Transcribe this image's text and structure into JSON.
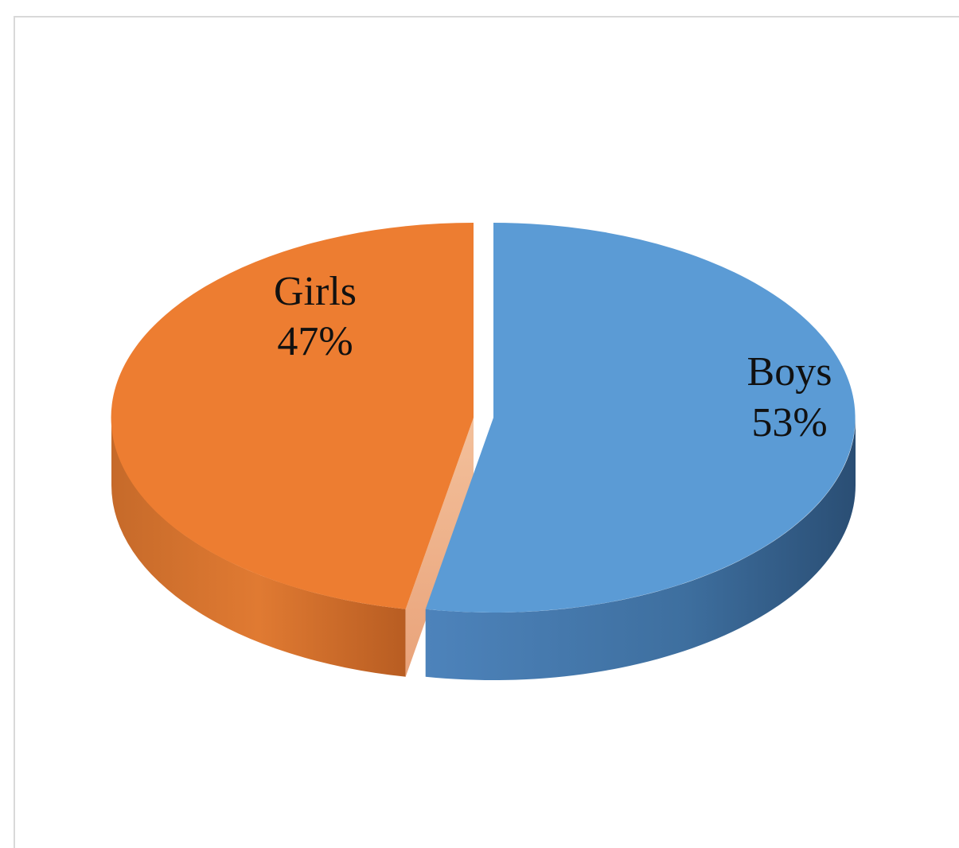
{
  "chart_data": {
    "type": "pie",
    "title": "",
    "slices": [
      {
        "name": "Boys",
        "value": 53,
        "label": "53%",
        "color": "#5b9bd5",
        "side_color": "#3c6e9f",
        "exploded": false
      },
      {
        "name": "Girls",
        "value": 47,
        "label": "47%",
        "color": "#ed7d31",
        "side_color": "#c7652a",
        "exploded": true
      }
    ],
    "legend": "none",
    "style": "3d",
    "data_labels": "category-and-percent-inside"
  }
}
